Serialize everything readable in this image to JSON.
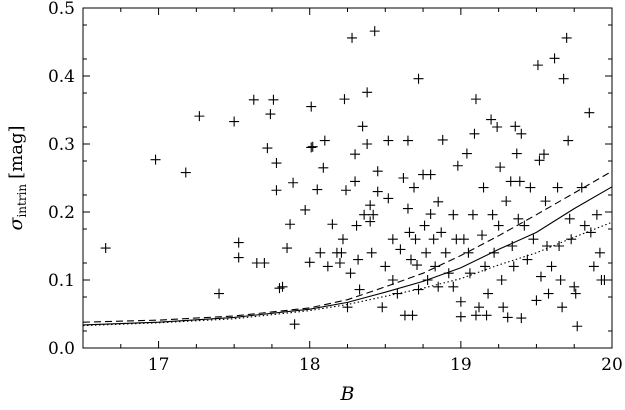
{
  "chart_data": {
    "type": "scatter",
    "xlabel": "B",
    "ylabel": {
      "symbol": "σ",
      "subscript": "intrin",
      "unit": "[mag]"
    },
    "xlim": [
      16.5,
      20.0
    ],
    "ylim": [
      0.0,
      0.5
    ],
    "xticks": [
      17,
      18,
      19,
      20
    ],
    "xtick_labels": [
      "17",
      "18",
      "19",
      "20"
    ],
    "yticks": [
      0.0,
      0.1,
      0.2,
      0.3,
      0.4,
      0.5
    ],
    "ytick_labels": [
      "0.0",
      "0.1",
      "0.2",
      "0.3",
      "0.4",
      "0.5"
    ],
    "grid": false,
    "scatter_points": [
      [
        16.65,
        0.147
      ],
      [
        16.98,
        0.277
      ],
      [
        17.18,
        0.258
      ],
      [
        17.27,
        0.341
      ],
      [
        17.4,
        0.08
      ],
      [
        17.5,
        0.333
      ],
      [
        17.53,
        0.155
      ],
      [
        17.53,
        0.133
      ],
      [
        17.63,
        0.365
      ],
      [
        17.65,
        0.125
      ],
      [
        17.7,
        0.125
      ],
      [
        17.72,
        0.294
      ],
      [
        17.74,
        0.344
      ],
      [
        17.76,
        0.365
      ],
      [
        17.78,
        0.272
      ],
      [
        17.78,
        0.232
      ],
      [
        17.8,
        0.088
      ],
      [
        17.82,
        0.09
      ],
      [
        17.85,
        0.147
      ],
      [
        17.87,
        0.182
      ],
      [
        17.89,
        0.243
      ],
      [
        17.9,
        0.035
      ],
      [
        17.97,
        0.203
      ],
      [
        18.0,
        0.126
      ],
      [
        18.01,
        0.295
      ],
      [
        18.01,
        0.355
      ],
      [
        18.02,
        0.296
      ],
      [
        18.05,
        0.233
      ],
      [
        18.07,
        0.14
      ],
      [
        18.09,
        0.265
      ],
      [
        18.1,
        0.305
      ],
      [
        18.12,
        0.12
      ],
      [
        18.15,
        0.182
      ],
      [
        18.18,
        0.14
      ],
      [
        18.2,
        0.125
      ],
      [
        18.21,
        0.14
      ],
      [
        18.22,
        0.16
      ],
      [
        18.23,
        0.366
      ],
      [
        18.24,
        0.232
      ],
      [
        18.25,
        0.06
      ],
      [
        18.27,
        0.11
      ],
      [
        18.28,
        0.456
      ],
      [
        18.3,
        0.285
      ],
      [
        18.3,
        0.245
      ],
      [
        18.31,
        0.18
      ],
      [
        18.32,
        0.13
      ],
      [
        18.33,
        0.086
      ],
      [
        18.35,
        0.326
      ],
      [
        18.36,
        0.196
      ],
      [
        18.38,
        0.376
      ],
      [
        18.38,
        0.3
      ],
      [
        18.4,
        0.21
      ],
      [
        18.4,
        0.186
      ],
      [
        18.41,
        0.14
      ],
      [
        18.42,
        0.196
      ],
      [
        18.43,
        0.466
      ],
      [
        18.45,
        0.26
      ],
      [
        18.45,
        0.23
      ],
      [
        18.48,
        0.06
      ],
      [
        18.5,
        0.12
      ],
      [
        18.52,
        0.305
      ],
      [
        18.52,
        0.22
      ],
      [
        18.55,
        0.16
      ],
      [
        18.55,
        0.1
      ],
      [
        18.58,
        0.08
      ],
      [
        18.6,
        0.145
      ],
      [
        18.62,
        0.25
      ],
      [
        18.63,
        0.048
      ],
      [
        18.65,
        0.305
      ],
      [
        18.65,
        0.205
      ],
      [
        18.66,
        0.17
      ],
      [
        18.67,
        0.13
      ],
      [
        18.68,
        0.048
      ],
      [
        18.69,
        0.236
      ],
      [
        18.7,
        0.16
      ],
      [
        18.71,
        0.122
      ],
      [
        18.72,
        0.396
      ],
      [
        18.72,
        0.086
      ],
      [
        18.75,
        0.255
      ],
      [
        18.76,
        0.18
      ],
      [
        18.77,
        0.14
      ],
      [
        18.78,
        0.1
      ],
      [
        18.8,
        0.255
      ],
      [
        18.8,
        0.197
      ],
      [
        18.82,
        0.16
      ],
      [
        18.83,
        0.12
      ],
      [
        18.85,
        0.215
      ],
      [
        18.85,
        0.09
      ],
      [
        18.87,
        0.17
      ],
      [
        18.88,
        0.306
      ],
      [
        18.9,
        0.14
      ],
      [
        18.92,
        0.11
      ],
      [
        18.95,
        0.196
      ],
      [
        18.95,
        0.09
      ],
      [
        18.97,
        0.16
      ],
      [
        18.98,
        0.268
      ],
      [
        19.0,
        0.068
      ],
      [
        19.0,
        0.046
      ],
      [
        19.02,
        0.16
      ],
      [
        19.04,
        0.286
      ],
      [
        19.05,
        0.14
      ],
      [
        19.06,
        0.11
      ],
      [
        19.08,
        0.196
      ],
      [
        19.09,
        0.315
      ],
      [
        19.1,
        0.366
      ],
      [
        19.1,
        0.048
      ],
      [
        19.12,
        0.06
      ],
      [
        19.14,
        0.166
      ],
      [
        19.15,
        0.236
      ],
      [
        19.16,
        0.12
      ],
      [
        19.17,
        0.048
      ],
      [
        19.18,
        0.08
      ],
      [
        19.2,
        0.336
      ],
      [
        19.21,
        0.196
      ],
      [
        19.22,
        0.14
      ],
      [
        19.24,
        0.325
      ],
      [
        19.25,
        0.18
      ],
      [
        19.26,
        0.266
      ],
      [
        19.27,
        0.1
      ],
      [
        19.28,
        0.06
      ],
      [
        19.3,
        0.216
      ],
      [
        19.31,
        0.045
      ],
      [
        19.33,
        0.245
      ],
      [
        19.34,
        0.15
      ],
      [
        19.35,
        0.12
      ],
      [
        19.36,
        0.326
      ],
      [
        19.37,
        0.286
      ],
      [
        19.38,
        0.19
      ],
      [
        19.39,
        0.245
      ],
      [
        19.4,
        0.315
      ],
      [
        19.4,
        0.044
      ],
      [
        19.42,
        0.18
      ],
      [
        19.44,
        0.13
      ],
      [
        19.46,
        0.236
      ],
      [
        19.48,
        0.16
      ],
      [
        19.5,
        0.07
      ],
      [
        19.51,
        0.416
      ],
      [
        19.52,
        0.276
      ],
      [
        19.53,
        0.105
      ],
      [
        19.55,
        0.285
      ],
      [
        19.56,
        0.216
      ],
      [
        19.57,
        0.15
      ],
      [
        19.58,
        0.08
      ],
      [
        19.6,
        0.12
      ],
      [
        19.62,
        0.426
      ],
      [
        19.64,
        0.236
      ],
      [
        19.65,
        0.15
      ],
      [
        19.66,
        0.1
      ],
      [
        19.67,
        0.06
      ],
      [
        19.68,
        0.396
      ],
      [
        19.7,
        0.456
      ],
      [
        19.71,
        0.305
      ],
      [
        19.72,
        0.19
      ],
      [
        19.73,
        0.16
      ],
      [
        19.75,
        0.09
      ],
      [
        19.76,
        0.08
      ],
      [
        19.77,
        0.032
      ],
      [
        19.8,
        0.236
      ],
      [
        19.82,
        0.18
      ],
      [
        19.85,
        0.346
      ],
      [
        19.86,
        0.17
      ],
      [
        19.88,
        0.12
      ],
      [
        19.9,
        0.196
      ],
      [
        19.92,
        0.14
      ],
      [
        19.93,
        0.1
      ],
      [
        19.95,
        0.1
      ]
    ],
    "curves": [
      {
        "style": "solid",
        "x": [
          16.5,
          17.0,
          17.5,
          18.0,
          18.25,
          18.5,
          18.75,
          19.0,
          19.25,
          19.5,
          19.75,
          20.0
        ],
        "y": [
          0.034,
          0.038,
          0.045,
          0.057,
          0.067,
          0.082,
          0.098,
          0.118,
          0.145,
          0.17,
          0.205,
          0.237
        ]
      },
      {
        "style": "dashed",
        "x": [
          16.5,
          17.0,
          17.5,
          18.0,
          18.25,
          18.5,
          18.75,
          19.0,
          19.25,
          19.5,
          19.75,
          20.0
        ],
        "y": [
          0.038,
          0.041,
          0.047,
          0.059,
          0.071,
          0.09,
          0.11,
          0.136,
          0.165,
          0.196,
          0.228,
          0.26
        ]
      },
      {
        "style": "dotted",
        "x": [
          16.5,
          17.0,
          17.5,
          18.0,
          18.25,
          18.5,
          18.75,
          19.0,
          19.25,
          19.5,
          19.75,
          20.0
        ],
        "y": [
          0.033,
          0.037,
          0.043,
          0.055,
          0.064,
          0.076,
          0.088,
          0.102,
          0.122,
          0.14,
          0.163,
          0.185
        ]
      }
    ]
  }
}
